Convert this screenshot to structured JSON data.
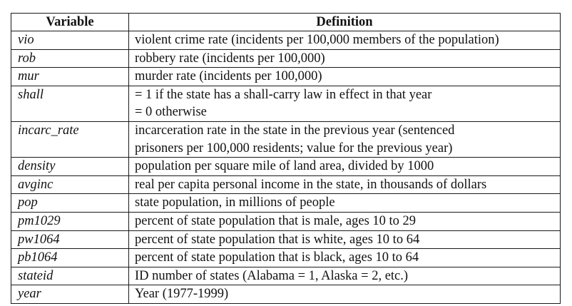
{
  "table": {
    "headers": [
      "Variable",
      "Definition"
    ],
    "rows": [
      {
        "variable": "vio",
        "definition": [
          "violent crime rate (incidents per 100,000 members of the population)"
        ]
      },
      {
        "variable": "rob",
        "definition": [
          "robbery rate (incidents per 100,000)"
        ]
      },
      {
        "variable": "mur",
        "definition": [
          "murder rate (incidents per 100,000)"
        ]
      },
      {
        "variable": "shall",
        "definition": [
          "= 1 if the state has a shall-carry law in effect in that year",
          "= 0 otherwise"
        ]
      },
      {
        "variable": "incarc_rate",
        "definition": [
          "incarceration rate in the state in the previous year (sentenced",
          "prisoners per 100,000 residents; value for the previous year)"
        ]
      },
      {
        "variable": "density",
        "definition": [
          "population per square mile of land area, divided by 1000"
        ]
      },
      {
        "variable": "avginc",
        "definition": [
          "real per capita personal income in the state, in thousands of dollars"
        ]
      },
      {
        "variable": "pop",
        "definition": [
          "state population, in millions of people"
        ]
      },
      {
        "variable": "pm1029",
        "definition": [
          "percent of state population that is male, ages 10 to 29"
        ]
      },
      {
        "variable": "pw1064",
        "definition": [
          "percent of state population that is white, ages 10 to 64"
        ]
      },
      {
        "variable": "pb1064",
        "definition": [
          "percent of state population that is black, ages 10 to 64"
        ]
      },
      {
        "variable": "stateid",
        "definition": [
          "ID number of states (Alabama = 1, Alaska = 2, etc.)"
        ]
      },
      {
        "variable": "year",
        "definition": [
          "Year (1977-1999)"
        ]
      }
    ]
  }
}
